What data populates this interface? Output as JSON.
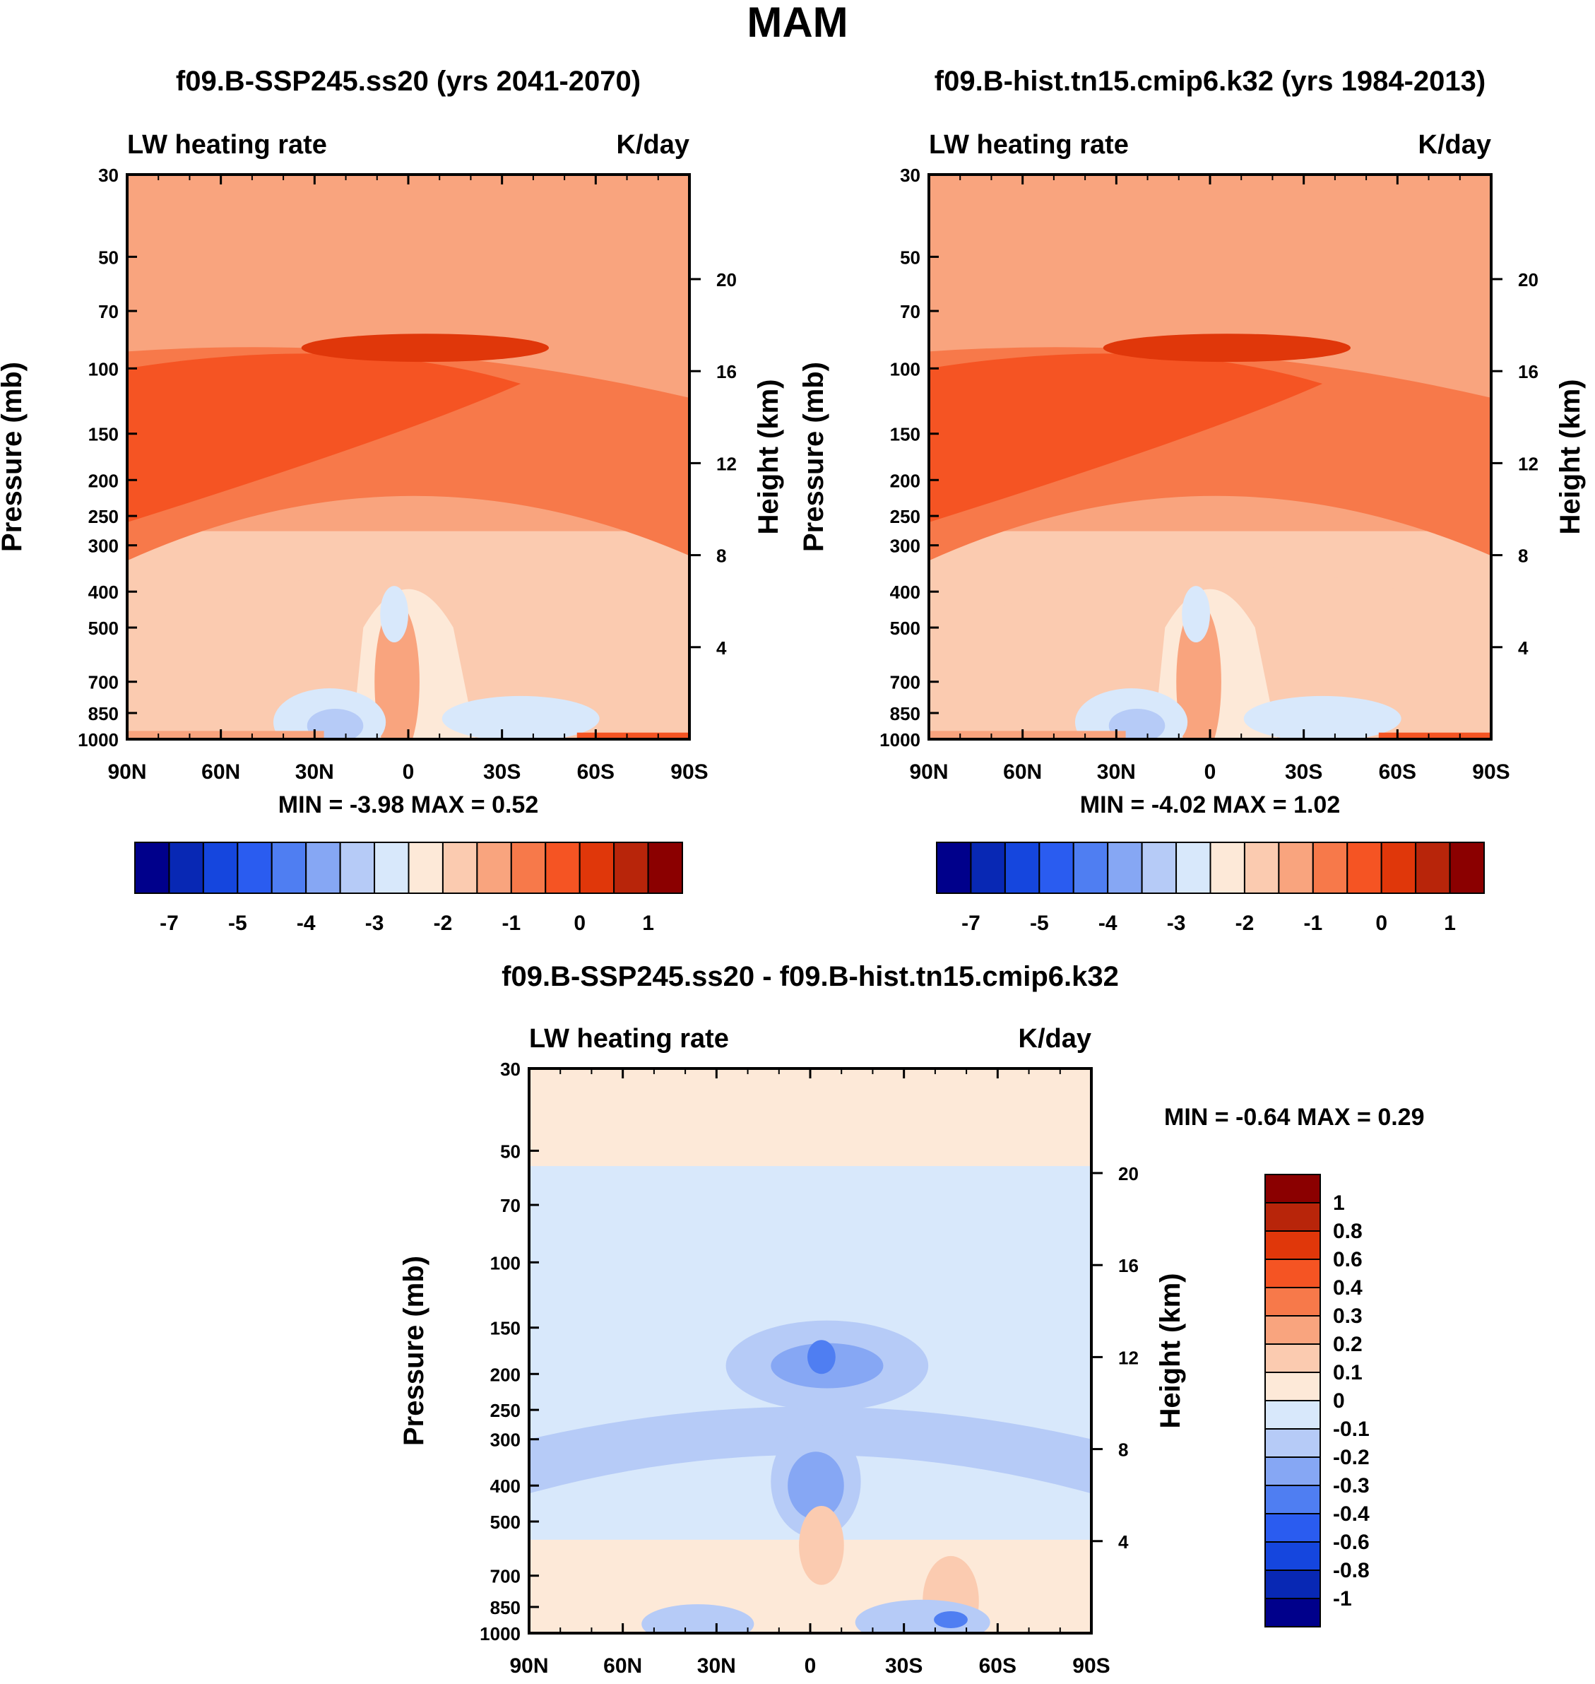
{
  "figure": {
    "title": "MAM"
  },
  "palette": {
    "full": [
      "#00008b",
      "#0828b4",
      "#1546de",
      "#2a5cf0",
      "#4f7ef2",
      "#86a7f4",
      "#b6cbf7",
      "#d8e8fb",
      "#fde9d8",
      "#fbcbb0",
      "#f9a47e",
      "#f7794a",
      "#f55423",
      "#e0370a",
      "#b8250a",
      "#8b0000"
    ],
    "diff": [
      "#00008b",
      "#0828b4",
      "#1546de",
      "#2a5cf0",
      "#4f7ef2",
      "#86a7f4",
      "#b6cbf7",
      "#d8e8fb",
      "#fde9d8",
      "#fbcbb0",
      "#f9a47e",
      "#f7794a",
      "#f55423",
      "#e0370a",
      "#b8250a",
      "#8b0000"
    ]
  },
  "panels": [
    {
      "title": "f09.B-SSP245.ss20 (yrs 2041-2070)",
      "left_label": "LW heating rate",
      "right_label": "K/day",
      "ylabel": "Pressure (mb)",
      "ylabel2": "Height (km)",
      "minmax": "MIN =  -3.98   MAX =    0.52"
    },
    {
      "title": "f09.B-hist.tn15.cmip6.k32 (yrs 1984-2013)",
      "left_label": "LW heating rate",
      "right_label": "K/day",
      "ylabel": "Pressure (mb)",
      "ylabel2": "Height (km)",
      "minmax": "MIN =  -4.02   MAX =    1.02"
    },
    {
      "title": "f09.B-SSP245.ss20 - f09.B-hist.tn15.cmip6.k32",
      "left_label": "LW heating rate",
      "right_label": "K/day",
      "ylabel": "Pressure (mb)",
      "ylabel2": "Height (km)",
      "minmax": "MIN =  -0.64   MAX =    0.29"
    }
  ],
  "chart_data": [
    {
      "type": "heatmap",
      "title": "f09.B-SSP245.ss20 (yrs 2041-2070)",
      "xlabel": "",
      "ylabel": "Pressure (mb)",
      "ylabel_right": "Height (km)",
      "x_ticks": [
        "90N",
        "60N",
        "30N",
        "0",
        "30S",
        "60S",
        "90S"
      ],
      "x_values": [
        90,
        60,
        30,
        0,
        -30,
        -60,
        -90
      ],
      "pressure_ticks": [
        30,
        50,
        70,
        100,
        150,
        200,
        250,
        300,
        400,
        500,
        700,
        850,
        1000
      ],
      "height_ticks_km": [
        20,
        16,
        12,
        8,
        4
      ],
      "ylim": [
        30,
        1000
      ],
      "colorbar_ticks": [
        "-7",
        "-5",
        "-4",
        "-3",
        "-2",
        "-1",
        "0",
        "1"
      ],
      "min": -3.98,
      "max": 0.52
    },
    {
      "type": "heatmap",
      "title": "f09.B-hist.tn15.cmip6.k32 (yrs 1984-2013)",
      "xlabel": "",
      "ylabel": "Pressure (mb)",
      "ylabel_right": "Height (km)",
      "x_ticks": [
        "90N",
        "60N",
        "30N",
        "0",
        "30S",
        "60S",
        "90S"
      ],
      "x_values": [
        90,
        60,
        30,
        0,
        -30,
        -60,
        -90
      ],
      "pressure_ticks": [
        30,
        50,
        70,
        100,
        150,
        200,
        250,
        300,
        400,
        500,
        700,
        850,
        1000
      ],
      "height_ticks_km": [
        20,
        16,
        12,
        8,
        4
      ],
      "ylim": [
        30,
        1000
      ],
      "colorbar_ticks": [
        "-7",
        "-5",
        "-4",
        "-3",
        "-2",
        "-1",
        "0",
        "1"
      ],
      "min": -4.02,
      "max": 1.02
    },
    {
      "type": "heatmap",
      "title": "f09.B-SSP245.ss20 - f09.B-hist.tn15.cmip6.k32",
      "xlabel": "",
      "ylabel": "Pressure (mb)",
      "ylabel_right": "Height (km)",
      "x_ticks": [
        "90N",
        "60N",
        "30N",
        "0",
        "30S",
        "60S",
        "90S"
      ],
      "x_values": [
        90,
        60,
        30,
        0,
        -30,
        -60,
        -90
      ],
      "pressure_ticks": [
        30,
        50,
        70,
        100,
        150,
        200,
        250,
        300,
        400,
        500,
        700,
        850,
        1000
      ],
      "height_ticks_km": [
        20,
        16,
        12,
        8,
        4
      ],
      "ylim": [
        30,
        1000
      ],
      "colorbar_ticks": [
        "1",
        "0.8",
        "0.6",
        "0.4",
        "0.3",
        "0.2",
        "0.1",
        "0",
        "-0.1",
        "-0.2",
        "-0.3",
        "-0.4",
        "-0.6",
        "-0.8",
        "-1"
      ],
      "min": -0.64,
      "max": 0.29
    }
  ]
}
